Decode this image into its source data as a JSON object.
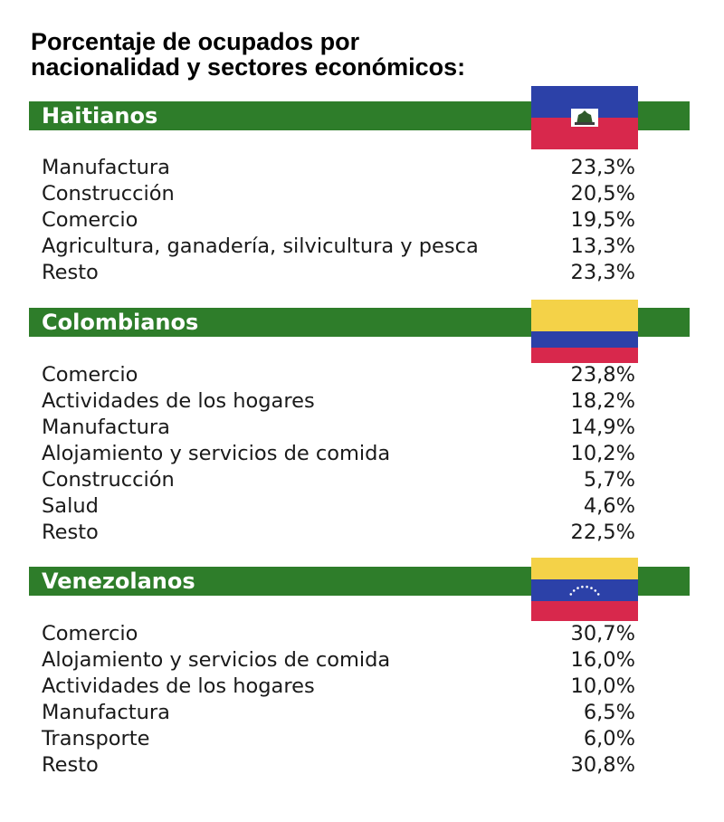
{
  "title": {
    "line1": "Porcentaje de ocupados por",
    "line2": "nacionalidad y sectores económicos:"
  },
  "colors": {
    "bar": "#2e7d2a",
    "haiti_blue": "#2c41a8",
    "haiti_red": "#d8284c",
    "colombia_yellow": "#f4d248",
    "colombia_blue": "#2c41a8",
    "colombia_red": "#d8284c",
    "venezuela_yellow": "#f4d248",
    "venezuela_blue": "#2c41a8",
    "venezuela_red": "#d8284c"
  },
  "sections": [
    {
      "name": "Haitianos",
      "flag_icon": "haiti-flag-icon",
      "rows": [
        {
          "label": "Manufactura",
          "value": "23,3%"
        },
        {
          "label": "Construcción",
          "value": "20,5%"
        },
        {
          "label": "Comercio",
          "value": "19,5%"
        },
        {
          "label": "Agricultura, ganadería, silvicultura y pesca",
          "value": "13,3%"
        },
        {
          "label": "Resto",
          "value": "23,3%"
        }
      ]
    },
    {
      "name": "Colombianos",
      "flag_icon": "colombia-flag-icon",
      "rows": [
        {
          "label": "Comercio",
          "value": "23,8%"
        },
        {
          "label": "Actividades de los hogares",
          "value": "18,2%"
        },
        {
          "label": "Manufactura",
          "value": "14,9%"
        },
        {
          "label": "Alojamiento y servicios de comida",
          "value": "10,2%"
        },
        {
          "label": "Construcción",
          "value": "5,7%"
        },
        {
          "label": "Salud",
          "value": "4,6%"
        },
        {
          "label": "Resto",
          "value": "22,5%"
        }
      ]
    },
    {
      "name": "Venezolanos",
      "flag_icon": "venezuela-flag-icon",
      "rows": [
        {
          "label": "Comercio",
          "value": "30,7%"
        },
        {
          "label": "Alojamiento y servicios de comida",
          "value": "16,0%"
        },
        {
          "label": "Actividades de los hogares",
          "value": "10,0%"
        },
        {
          "label": "Manufactura",
          "value": "6,5%"
        },
        {
          "label": "Transporte",
          "value": "6,0%"
        },
        {
          "label": "Resto",
          "value": "30,8%"
        }
      ]
    }
  ]
}
